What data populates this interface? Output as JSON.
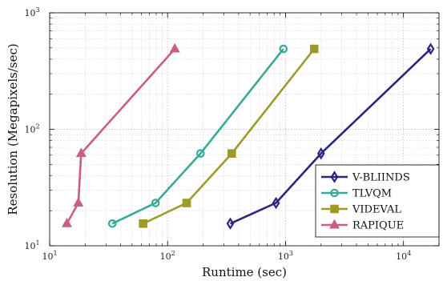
{
  "chart_data": {
    "type": "line",
    "title": "",
    "xlabel": "Runtime (sec)",
    "ylabel": "Resolution (Megapixels/sec)",
    "xscale": "log",
    "yscale": "log",
    "xlim": [
      10,
      20000
    ],
    "ylim": [
      10,
      1000
    ],
    "grid": true,
    "legend_position": "bottom-right",
    "x_ticks": [
      {
        "value": 10,
        "base": "10",
        "exp": "1"
      },
      {
        "value": 100,
        "base": "10",
        "exp": "2"
      },
      {
        "value": 1000,
        "base": "10",
        "exp": "3"
      },
      {
        "value": 10000,
        "base": "10",
        "exp": "4"
      }
    ],
    "y_ticks": [
      {
        "value": 10,
        "base": "10",
        "exp": "1"
      },
      {
        "value": 100,
        "base": "10",
        "exp": "2"
      },
      {
        "value": 1000,
        "base": "10",
        "exp": "3"
      }
    ],
    "series": [
      {
        "name": "V-BLIINDS",
        "color": "#2a2580",
        "marker": "diamond",
        "points": [
          {
            "x": 340,
            "y": 15.5
          },
          {
            "x": 830,
            "y": 23.3
          },
          {
            "x": 2000,
            "y": 62
          },
          {
            "x": 17000,
            "y": 490
          }
        ]
      },
      {
        "name": "TLVQM",
        "color": "#3aa89a",
        "marker": "circle",
        "points": [
          {
            "x": 34,
            "y": 15.5
          },
          {
            "x": 79,
            "y": 23.3
          },
          {
            "x": 190,
            "y": 62
          },
          {
            "x": 960,
            "y": 490
          }
        ]
      },
      {
        "name": "VIDEVAL",
        "color": "#9e9a2b",
        "marker": "square",
        "points": [
          {
            "x": 62,
            "y": 15.5
          },
          {
            "x": 145,
            "y": 23.3
          },
          {
            "x": 350,
            "y": 62
          },
          {
            "x": 1750,
            "y": 490
          }
        ]
      },
      {
        "name": "RAPIQUE",
        "color": "#c9607a",
        "marker": "triangle",
        "points": [
          {
            "x": 14,
            "y": 15.5
          },
          {
            "x": 17.5,
            "y": 23.3
          },
          {
            "x": 18.5,
            "y": 62
          },
          {
            "x": 115,
            "y": 490
          }
        ]
      }
    ]
  }
}
